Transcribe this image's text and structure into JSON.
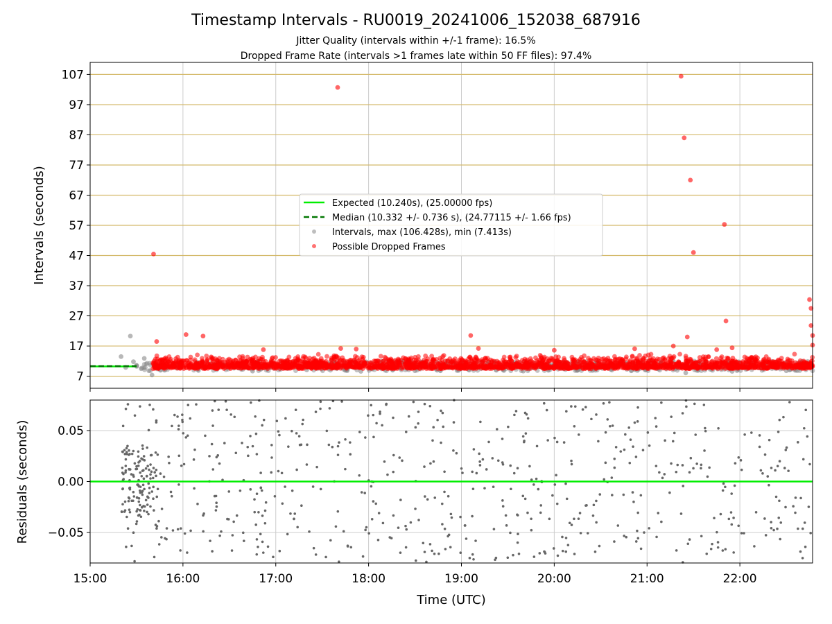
{
  "colors": {
    "expected": "#00ee00",
    "median": "#007700",
    "intervals": "#888888",
    "dropped": "#ff0000",
    "hline": "#d4b96a",
    "grid": "#cccccc",
    "residual": "#666666",
    "zero": "#00ee00"
  },
  "chart_data": [
    {
      "type": "scatter",
      "title": "Timestamp Intervals - RU0019_20241006_152038_687916",
      "subtitle_1": "Jitter Quality (intervals within +/-1 frame): 16.5%",
      "subtitle_2": "Dropped Frame Rate (intervals >1 frames late within 50 FF files): 97.4%",
      "xlabel": "",
      "ylabel": "Intervals (seconds)",
      "xlim": [
        "15:00",
        "22:47"
      ],
      "ylim": [
        3,
        111
      ],
      "x_ticks": [
        "15:00",
        "16:00",
        "17:00",
        "18:00",
        "19:00",
        "20:00",
        "21:00",
        "22:00"
      ],
      "y_ticks": [
        "7",
        "17",
        "27",
        "37",
        "47",
        "57",
        "67",
        "77",
        "87",
        "97",
        "107"
      ],
      "grid": true,
      "legend_position": "center",
      "legend": [
        {
          "label": "Expected (10.240s), (25.00000 fps)",
          "kind": "solid-line",
          "color": "#00ee00"
        },
        {
          "label": "Median (10.332 +/- 0.736 s), (24.77115 +/- 1.66 fps)",
          "kind": "dashed-line",
          "color": "#007700"
        },
        {
          "label": "Intervals, max (106.428s), min (7.413s)",
          "kind": "marker",
          "color": "#888888"
        },
        {
          "label": "Possible Dropped Frames",
          "kind": "marker",
          "color": "#ff0000"
        }
      ],
      "expected_interval": 10.24,
      "median_interval": 10.332,
      "interval_max": 106.428,
      "interval_min": 7.413,
      "series": [
        {
          "name": "Intervals, max (106.428s), min (7.413s)",
          "x": [
            "15:20",
            "15:23",
            "15:26",
            "15:28",
            "15:30",
            "15:33",
            "15:35",
            "15:38",
            "15:40",
            "15:42",
            "16:10",
            "16:45",
            "17:20",
            "17:55",
            "18:30",
            "19:05",
            "19:40",
            "20:15",
            "20:50",
            "21:25",
            "21:55",
            "22:30"
          ],
          "y": [
            13.5,
            9.9,
            20.3,
            11.8,
            10.6,
            9.5,
            12.9,
            8.8,
            7.4,
            10.2,
            8.9,
            8.7,
            9.1,
            8.6,
            8.8,
            9.0,
            8.7,
            9.2,
            8.9,
            8.1,
            8.6,
            8.8
          ]
        },
        {
          "name": "Possible Dropped Frames",
          "x": [
            "15:41",
            "15:43",
            "16:02",
            "16:13",
            "16:52",
            "17:40",
            "17:42",
            "17:52",
            "19:06",
            "19:11",
            "20:00",
            "20:52",
            "21:17",
            "21:22",
            "21:24",
            "21:26",
            "21:28",
            "21:30",
            "21:45",
            "21:50",
            "21:51",
            "21:55",
            "22:45",
            "22:46",
            "22:46",
            "22:47",
            "22:47"
          ],
          "y": [
            47.5,
            18.5,
            20.8,
            20.3,
            15.8,
            102.7,
            16.2,
            16.0,
            20.5,
            16.2,
            15.6,
            16.1,
            17.0,
            106.4,
            86.0,
            20.0,
            72.0,
            48.0,
            15.8,
            57.3,
            25.3,
            16.4,
            32.4,
            29.5,
            23.8,
            20.5,
            17.3
          ]
        },
        {
          "name": "Possible Dropped Frames (dense band)",
          "x_range": [
            "15:30",
            "22:47"
          ],
          "y_range": [
            9.5,
            14.0
          ]
        }
      ]
    },
    {
      "type": "scatter",
      "title": "",
      "xlabel": "Time (UTC)",
      "ylabel": "Residuals (seconds)",
      "xlim": [
        "15:00",
        "22:47"
      ],
      "ylim": [
        -0.08,
        0.08
      ],
      "x_ticks": [
        "15:00",
        "16:00",
        "17:00",
        "18:00",
        "19:00",
        "20:00",
        "21:00",
        "22:00"
      ],
      "y_ticks": [
        "0.05",
        "0.00",
        "−0.05"
      ],
      "grid": true,
      "zero_line": 0,
      "series": [
        {
          "name": "residuals",
          "x_range": [
            "15:20",
            "22:47"
          ],
          "y_range": [
            -0.08,
            0.08
          ]
        }
      ]
    }
  ]
}
